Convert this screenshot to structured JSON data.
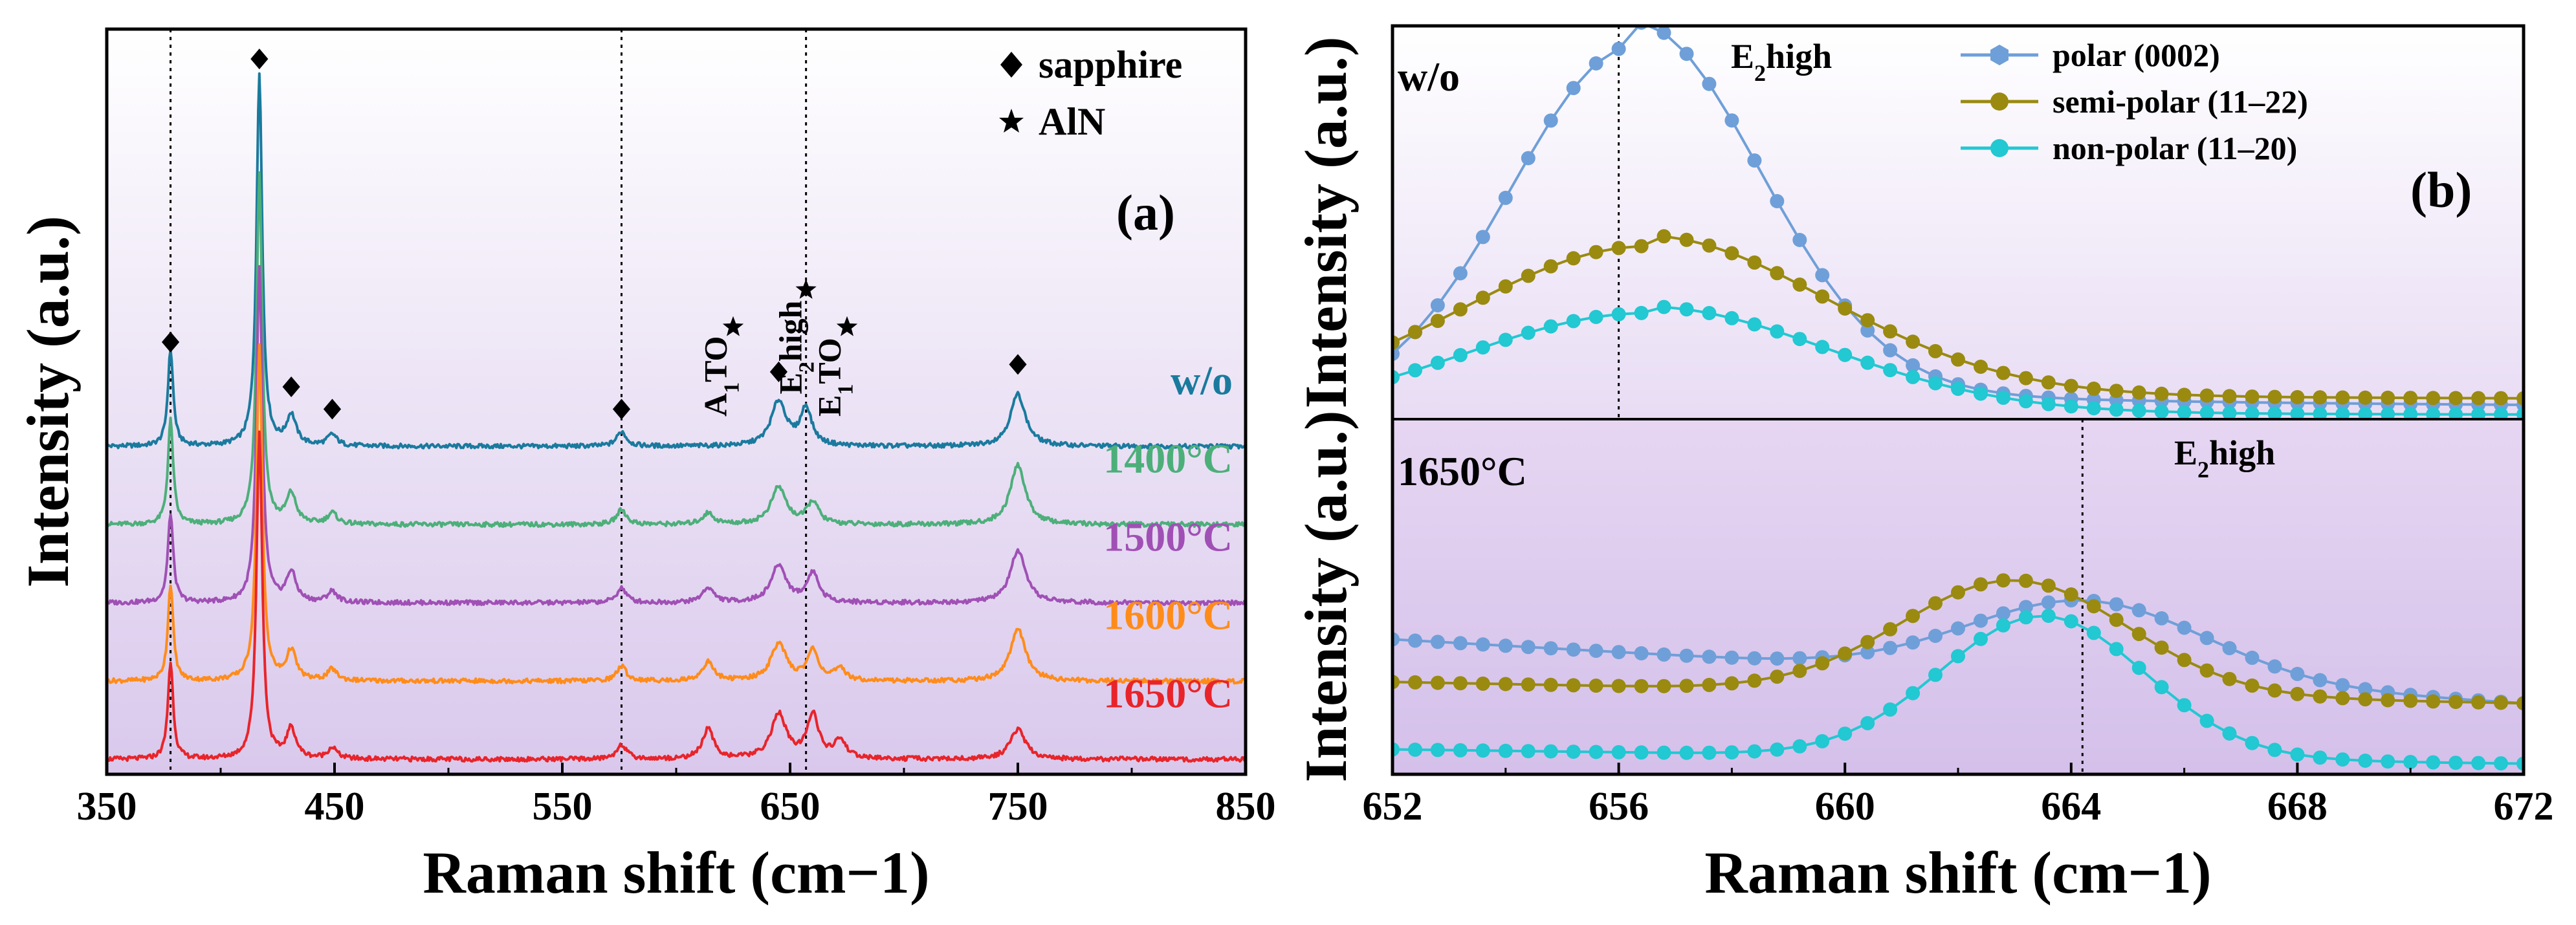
{
  "chart_data": [
    {
      "id": "a",
      "panel_label": "(a)",
      "type": "line",
      "xlabel": "Raman shift (cm−1)",
      "ylabel": "Intensity (a.u.)",
      "xlim": [
        350,
        850
      ],
      "xticks": [
        350,
        450,
        550,
        650,
        750,
        850
      ],
      "ylim": [
        0,
        100
      ],
      "guide_lines_x": [
        378,
        576,
        657
      ],
      "legend": [
        {
          "marker": "diamond",
          "label": "sapphire"
        },
        {
          "marker": "star",
          "label": "AlN"
        }
      ],
      "series": [
        {
          "name": "w/o",
          "color": "#1a7a9e",
          "offset": 44,
          "peaks": [
            [
              378,
              13,
              1.4
            ],
            [
              417,
              50,
              1.5
            ],
            [
              431,
              4,
              2.5
            ],
            [
              449,
              1.5,
              2.5
            ],
            [
              576,
              2,
              2.5
            ],
            [
              645,
              6,
              4
            ],
            [
              657,
              5,
              3
            ],
            [
              750,
              7,
              4
            ]
          ]
        },
        {
          "name": "1400°C",
          "color": "#4caf7a",
          "offset": 33.5,
          "peaks": [
            [
              378,
              14,
              1.4
            ],
            [
              417,
              47,
              1.5
            ],
            [
              431,
              4,
              2.5
            ],
            [
              449,
              1.5,
              2.5
            ],
            [
              576,
              2,
              2.5
            ],
            [
              614,
              1.5,
              3
            ],
            [
              645,
              5,
              4
            ],
            [
              660,
              3,
              3
            ],
            [
              750,
              8,
              4
            ]
          ]
        },
        {
          "name": "1500°C",
          "color": "#a050b5",
          "offset": 23,
          "peaks": [
            [
              378,
              12,
              1.4
            ],
            [
              417,
              45,
              1.5
            ],
            [
              431,
              4,
              2.5
            ],
            [
              449,
              1.5,
              2.5
            ],
            [
              576,
              2,
              2.5
            ],
            [
              614,
              2,
              3
            ],
            [
              645,
              5,
              4
            ],
            [
              660,
              4,
              3
            ],
            [
              750,
              7,
              4
            ]
          ]
        },
        {
          "name": "1600°C",
          "color": "#ff8c1a",
          "offset": 12.5,
          "peaks": [
            [
              378,
              13,
              1.4
            ],
            [
              417,
              45,
              1.5
            ],
            [
              431,
              4,
              2.5
            ],
            [
              449,
              1.5,
              2.5
            ],
            [
              576,
              2,
              2.5
            ],
            [
              614,
              2.5,
              3
            ],
            [
              645,
              5,
              4
            ],
            [
              660,
              4,
              3
            ],
            [
              672,
              1.5,
              3
            ],
            [
              750,
              7,
              4
            ]
          ]
        },
        {
          "name": "1650°C",
          "color": "#e8242a",
          "offset": 2,
          "peaks": [
            [
              378,
              13,
              1.4
            ],
            [
              417,
              44,
              1.5
            ],
            [
              431,
              4,
              2.5
            ],
            [
              449,
              1.5,
              2.5
            ],
            [
              576,
              2,
              2.5
            ],
            [
              614,
              4,
              3
            ],
            [
              645,
              6,
              4
            ],
            [
              660,
              6,
              3
            ],
            [
              672,
              2.5,
              3
            ],
            [
              750,
              4,
              4
            ]
          ]
        }
      ],
      "annotations": [
        {
          "symbol": "diamond",
          "x": 378,
          "y": 58
        },
        {
          "symbol": "diamond",
          "x": 417,
          "y": 96
        },
        {
          "symbol": "diamond",
          "x": 431,
          "y": 52
        },
        {
          "symbol": "diamond",
          "x": 449,
          "y": 49
        },
        {
          "symbol": "diamond",
          "x": 576,
          "y": 49
        },
        {
          "symbol": "diamond",
          "x": 645,
          "y": 54
        },
        {
          "symbol": "diamond",
          "x": 750,
          "y": 55
        },
        {
          "symbol": "star",
          "x": 625,
          "y": 60
        },
        {
          "symbol": "star",
          "x": 657,
          "y": 65
        },
        {
          "symbol": "star",
          "x": 675,
          "y": 60
        }
      ],
      "peak_labels": [
        {
          "text": "A1TO",
          "main": "A",
          "sub": "1",
          "rest": "TO",
          "x": 622,
          "y": 48
        },
        {
          "text": "E2high",
          "main": "E",
          "sub": "2",
          "rest": "high",
          "x": 655,
          "y": 51
        },
        {
          "text": "E1TO",
          "main": "E",
          "sub": "1",
          "rest": "TO",
          "x": 672,
          "y": 48
        }
      ]
    },
    {
      "id": "b-top",
      "panel_label": "(b)",
      "type": "line",
      "ylabel": "Intensity (a.u.)",
      "xlim": [
        652,
        672
      ],
      "ylim": [
        0,
        100
      ],
      "sample_label": "w/o",
      "peak_label": {
        "text": "E2high",
        "main": "E",
        "sub": "2",
        "rest": "high"
      },
      "guide_x": 656,
      "series": [
        {
          "name": "polar (0002)",
          "color": "#6f9fd8",
          "base": 3,
          "peak_x": 656.3,
          "peak": 95,
          "sigma": 2.2
        },
        {
          "name": "semi-polar (11–22)",
          "color": "#9a8a10",
          "base": 5,
          "peak_x": 656.5,
          "peak": 44,
          "sigma": 3.2
        },
        {
          "name": "non-polar (11–20)",
          "color": "#22c8d2",
          "base": 1,
          "peak_x": 656.5,
          "peak": 27,
          "sigma": 3.2
        }
      ]
    },
    {
      "id": "b-bottom",
      "type": "line",
      "xlabel": "Raman shift (cm−1)",
      "xlim": [
        652,
        672
      ],
      "xticks": [
        652,
        656,
        660,
        664,
        668,
        672
      ],
      "ylim": [
        0,
        100
      ],
      "sample_label": "1650°C",
      "peak_label": {
        "text": "E2high",
        "main": "E",
        "sub": "2",
        "rest": "high"
      },
      "guide_x": 664.2,
      "series": [
        {
          "name": "polar (0002)",
          "color": "#6f9fd8",
          "base": 38,
          "base_slope": -0.9,
          "peak_x": 664.3,
          "peak": 60,
          "sigma": 2.1
        },
        {
          "name": "semi-polar (11–22)",
          "color": "#9a8a10",
          "base": 26,
          "base_slope": -0.3,
          "peak_x": 663,
          "peak": 58,
          "sigma": 2.0
        },
        {
          "name": "non-polar (11–20)",
          "color": "#22c8d2",
          "base": 7,
          "base_slope": -0.2,
          "peak_x": 663.5,
          "peak": 47,
          "sigma": 1.8
        }
      ]
    }
  ]
}
